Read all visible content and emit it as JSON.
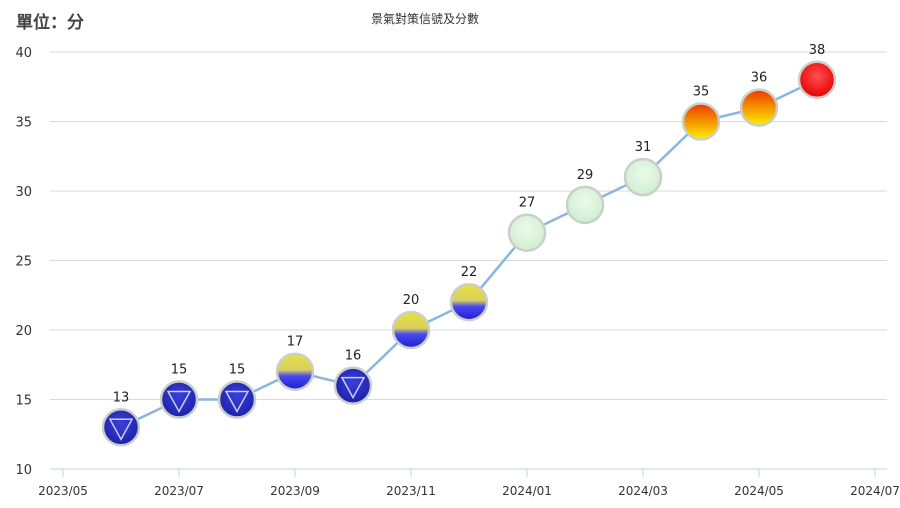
{
  "header": {
    "unit_label": "單位：分",
    "title": "景氣對策信號及分數"
  },
  "chart_data": {
    "type": "line",
    "title": "景氣對策信號及分數",
    "ylabel": "單位：分",
    "xlabel": "",
    "ylim": [
      10,
      40
    ],
    "yticks": [
      10,
      15,
      20,
      25,
      30,
      35,
      40
    ],
    "x_ticks": [
      "2023/05",
      "2023/07",
      "2023/09",
      "2023/11",
      "2024/01",
      "2024/03",
      "2024/05",
      "2024/07"
    ],
    "grid": true,
    "series": [
      {
        "x": [
          "2023/06",
          "2023/07",
          "2023/08",
          "2023/09",
          "2023/10",
          "2023/11",
          "2023/12",
          "2024/01",
          "2024/02",
          "2024/03",
          "2024/04",
          "2024/05",
          "2024/06"
        ],
        "values": [
          13,
          15,
          15,
          17,
          16,
          20,
          22,
          27,
          29,
          31,
          35,
          36,
          38
        ],
        "signals": [
          "blue",
          "blue",
          "blue",
          "yellow-blue",
          "blue",
          "yellow-blue",
          "yellow-blue",
          "green",
          "green",
          "green",
          "yellow-red",
          "yellow-red",
          "red"
        ]
      }
    ],
    "line_color": "#8ab6dd",
    "signal_colors": {
      "blue": "#1c20a8",
      "yellow-blue": "#e8e040",
      "green": "#cfeecf",
      "yellow-red": "#f7b800",
      "red": "#e60000"
    }
  }
}
